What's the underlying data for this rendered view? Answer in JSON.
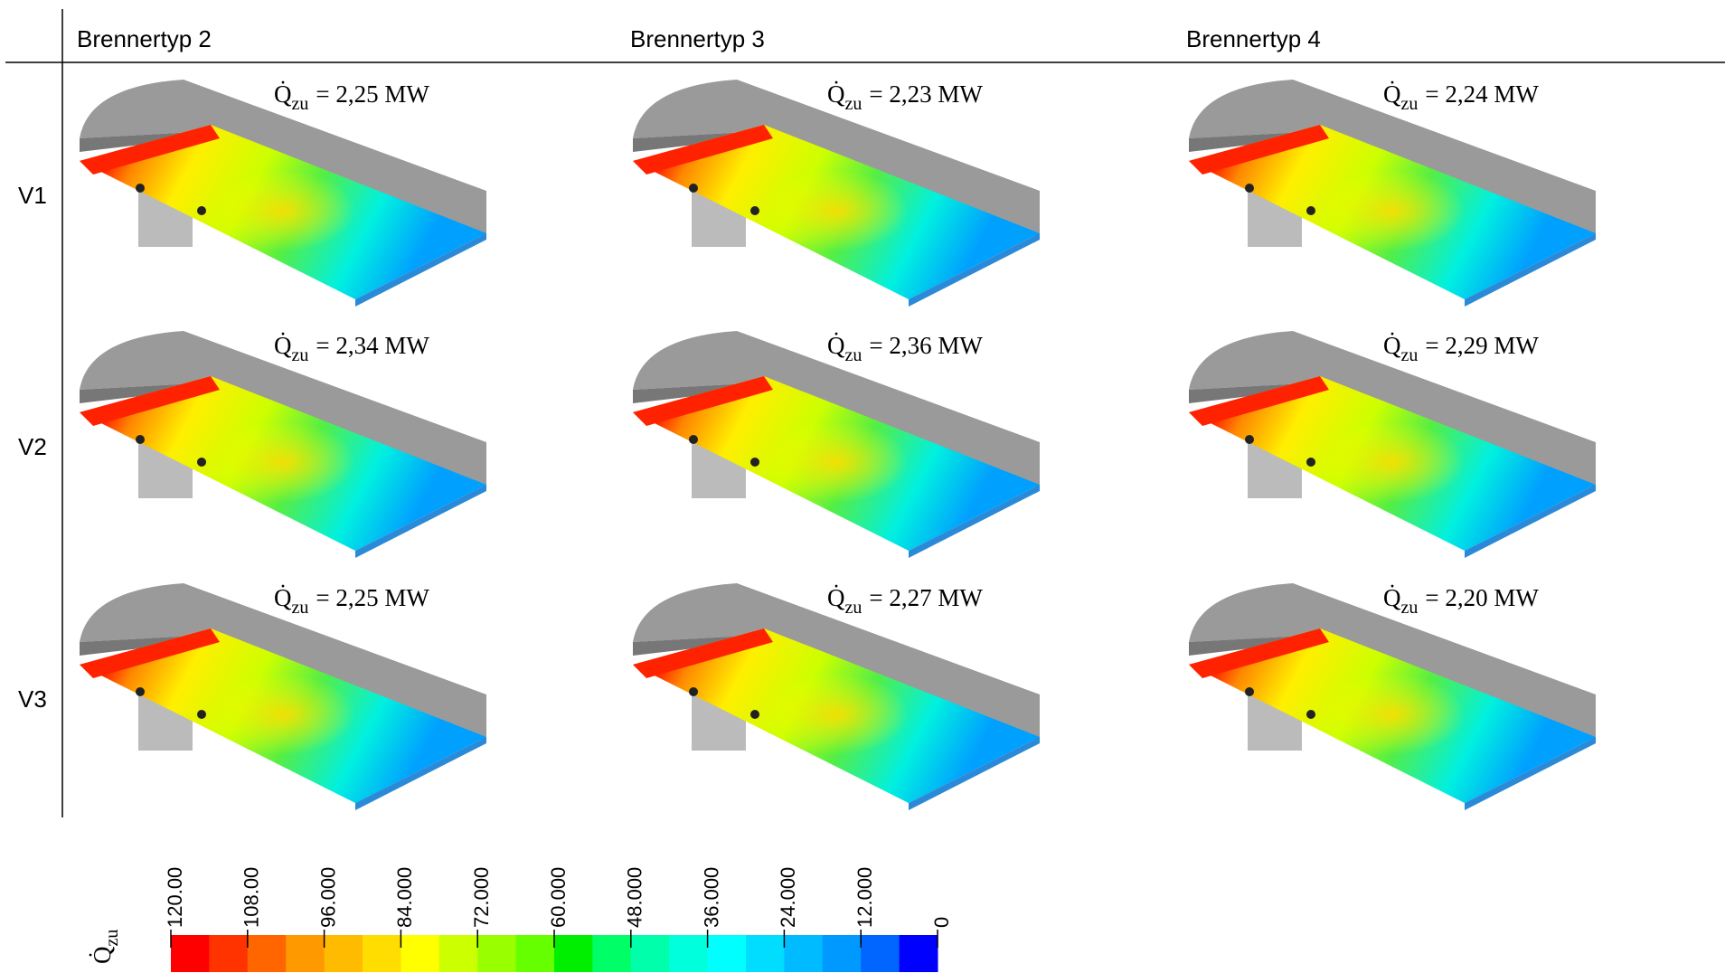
{
  "header": {
    "columns": [
      "Brennertyp 2",
      "Brennertyp 3",
      "Brennertyp 4"
    ]
  },
  "rows": [
    {
      "label": "V1",
      "cells": [
        {
          "symbol": "Q̇",
          "sub": "zu",
          "text": "= 2,25 MW"
        },
        {
          "symbol": "Q̇",
          "sub": "zu",
          "text": "= 2,23 MW"
        },
        {
          "symbol": "Q̇",
          "sub": "zu",
          "text": "= 2,24 MW"
        }
      ]
    },
    {
      "label": "V2",
      "cells": [
        {
          "symbol": "Q̇",
          "sub": "zu",
          "text": "= 2,34 MW"
        },
        {
          "symbol": "Q̇",
          "sub": "zu",
          "text": "= 2,36 MW"
        },
        {
          "symbol": "Q̇",
          "sub": "zu",
          "text": "= 2,29 MW"
        }
      ]
    },
    {
      "label": "V3",
      "cells": [
        {
          "symbol": "Q̇",
          "sub": "zu",
          "text": "= 2,25 MW"
        },
        {
          "symbol": "Q̇",
          "sub": "zu",
          "text": "= 2,27 MW"
        },
        {
          "symbol": "Q̇",
          "sub": "zu",
          "text": "= 2,20 MW"
        }
      ]
    }
  ],
  "colorbar": {
    "symbol": "Q̇",
    "sub": "zu",
    "ticks": [
      "120.00",
      "108.00",
      "96.000",
      "84.000",
      "72.000",
      "60.000",
      "48.000",
      "36.000",
      "24.000",
      "12.000",
      "0"
    ],
    "colors": [
      "#ff0000",
      "#ff3300",
      "#ff6600",
      "#ff9900",
      "#ffbb00",
      "#ffdd00",
      "#ffff00",
      "#ccff00",
      "#99ff00",
      "#66ff00",
      "#00ee00",
      "#00ff66",
      "#00ffaa",
      "#00ffdd",
      "#00ffff",
      "#00ddff",
      "#00bbff",
      "#0099ff",
      "#0066ff",
      "#0000ff"
    ]
  }
}
